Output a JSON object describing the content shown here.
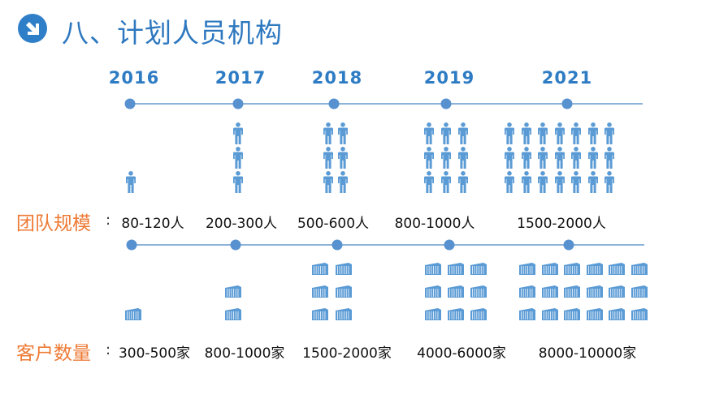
{
  "header": {
    "title": "八、计划人员机构",
    "icon": "arrow-down-right-circle-icon",
    "accent_color": "#2e78bf"
  },
  "years": [
    "2016",
    "2017",
    "2018",
    "2019",
    "2021"
  ],
  "team_scale": {
    "label": "团队规模",
    "colon": ":",
    "values": [
      "80-120人",
      "200-300人",
      "500-600人",
      "800-1000人",
      "1500-2000人"
    ],
    "icon": "person-icon",
    "icon_grids": [
      [
        1,
        1
      ],
      [
        1,
        3
      ],
      [
        2,
        3
      ],
      [
        3,
        3
      ],
      [
        7,
        3
      ]
    ]
  },
  "customer_count": {
    "label": "客户数量",
    "colon": ":",
    "values": [
      "300-500家",
      "800-1000家",
      "1500-2000家",
      "4000-6000家",
      "8000-10000家"
    ],
    "icon": "building-icon",
    "icon_grids": [
      [
        1,
        1
      ],
      [
        1,
        2
      ],
      [
        2,
        3
      ],
      [
        3,
        3
      ],
      [
        6,
        3
      ]
    ]
  },
  "colors": {
    "label_orange": "#ee7a34",
    "timeline_line": "#8cb3d9",
    "timeline_dot": "#5791d0",
    "icon_blue": "#5b9bd5"
  }
}
